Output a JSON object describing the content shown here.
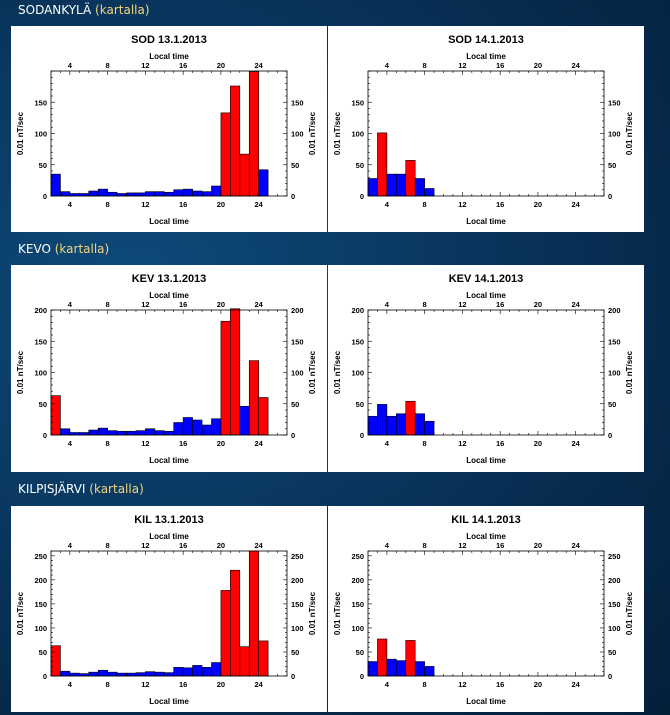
{
  "sections": [
    {
      "station": "SODANKYLÄ",
      "link": "(kartalla)",
      "charts": [
        {
          "title": "SOD 13.1.2013",
          "ymax": 200,
          "yticks": [
            0,
            50,
            100,
            150
          ],
          "values": [
            35,
            7,
            4,
            4,
            8,
            11,
            6,
            4,
            5,
            5,
            7,
            7,
            6,
            10,
            11,
            8,
            7,
            16,
            133,
            176,
            67,
            199,
            42
          ],
          "colors": [
            "b",
            "b",
            "b",
            "b",
            "b",
            "b",
            "b",
            "b",
            "b",
            "b",
            "b",
            "b",
            "b",
            "b",
            "b",
            "b",
            "b",
            "b",
            "r",
            "r",
            "r",
            "r",
            "b"
          ]
        },
        {
          "title": "SOD 14.1.2013",
          "ymax": 200,
          "yticks": [
            0,
            50,
            100,
            150
          ],
          "values": [
            28,
            101,
            35,
            35,
            57,
            28,
            12
          ],
          "colors": [
            "b",
            "r",
            "b",
            "b",
            "r",
            "b",
            "b"
          ]
        }
      ]
    },
    {
      "station": "KEVO",
      "link": "(kartalla)",
      "charts": [
        {
          "title": "KEV 13.1.2013",
          "ymax": 200,
          "yticks": [
            0,
            50,
            100,
            150,
            200
          ],
          "values": [
            63,
            10,
            4,
            4,
            8,
            11,
            7,
            6,
            6,
            7,
            10,
            7,
            6,
            20,
            28,
            24,
            16,
            26,
            182,
            202,
            46,
            119,
            60
          ],
          "colors": [
            "r",
            "b",
            "b",
            "b",
            "b",
            "b",
            "b",
            "b",
            "b",
            "b",
            "b",
            "b",
            "b",
            "b",
            "b",
            "b",
            "b",
            "b",
            "r",
            "r",
            "b",
            "r",
            "r"
          ]
        },
        {
          "title": "KEV 14.1.2013",
          "ymax": 200,
          "yticks": [
            0,
            50,
            100,
            150,
            200
          ],
          "values": [
            30,
            49,
            30,
            34,
            54,
            34,
            22
          ],
          "colors": [
            "b",
            "b",
            "b",
            "b",
            "r",
            "b",
            "b"
          ]
        }
      ]
    },
    {
      "station": "KILPISJÄRVI",
      "link": "(kartalla)",
      "charts": [
        {
          "title": "KIL 13.1.2013",
          "ymax": 260,
          "yticks": [
            0,
            50,
            100,
            150,
            200,
            250
          ],
          "values": [
            63,
            10,
            6,
            5,
            8,
            12,
            8,
            6,
            6,
            7,
            9,
            8,
            7,
            18,
            17,
            22,
            18,
            28,
            178,
            220,
            61,
            260,
            73
          ],
          "colors": [
            "r",
            "b",
            "b",
            "b",
            "b",
            "b",
            "b",
            "b",
            "b",
            "b",
            "b",
            "b",
            "b",
            "b",
            "b",
            "b",
            "b",
            "b",
            "r",
            "r",
            "r",
            "r",
            "r"
          ]
        },
        {
          "title": "KIL 14.1.2013",
          "ymax": 260,
          "yticks": [
            0,
            50,
            100,
            150,
            200,
            250
          ],
          "values": [
            30,
            77,
            35,
            32,
            74,
            30,
            20
          ],
          "colors": [
            "b",
            "r",
            "b",
            "b",
            "r",
            "b",
            "b"
          ]
        }
      ]
    }
  ],
  "chart_data": {
    "type": "bar",
    "x_top_label": "Local time",
    "x_bottom_label": "Local time",
    "ylabel": "0.01 nT/sec",
    "x_range": [
      2,
      27
    ],
    "x_ticks": [
      4,
      8,
      12,
      16,
      20,
      24
    ],
    "x_start": 2,
    "colors": {
      "r": "#ff0000",
      "b": "#0000ff"
    }
  }
}
